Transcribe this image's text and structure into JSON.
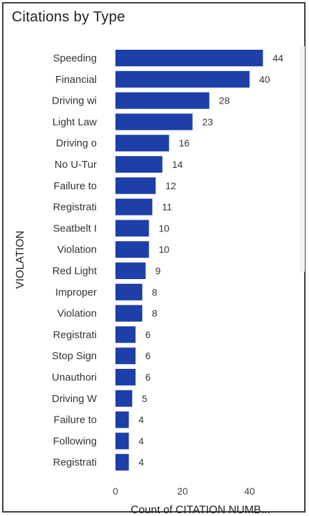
{
  "visual": {
    "title": "Citations by Type"
  },
  "chart_data": {
    "type": "bar",
    "orientation": "horizontal",
    "title": "Citations by Type",
    "xlabel": "Count of CITATION NUMB...",
    "ylabel": "VIOLATION",
    "xlim": [
      0,
      44
    ],
    "xticks": [
      0,
      20,
      40
    ],
    "grid": false,
    "bar_color": "#1f3fa8",
    "categories": [
      "Speeding",
      "Financial",
      "Driving wi",
      "Light Law",
      "Driving o",
      "No U-Tur",
      "Failure to",
      "Registrati",
      "Seatbelt I",
      "Violation",
      "Red Light",
      "Improper",
      "Violation",
      "Registrati",
      "Stop Sign",
      "Unauthori",
      "Driving W",
      "Failure to",
      "Following",
      "Registrati"
    ],
    "values": [
      44,
      40,
      28,
      23,
      16,
      14,
      12,
      11,
      10,
      10,
      9,
      8,
      8,
      6,
      6,
      6,
      5,
      4,
      4,
      4
    ]
  }
}
